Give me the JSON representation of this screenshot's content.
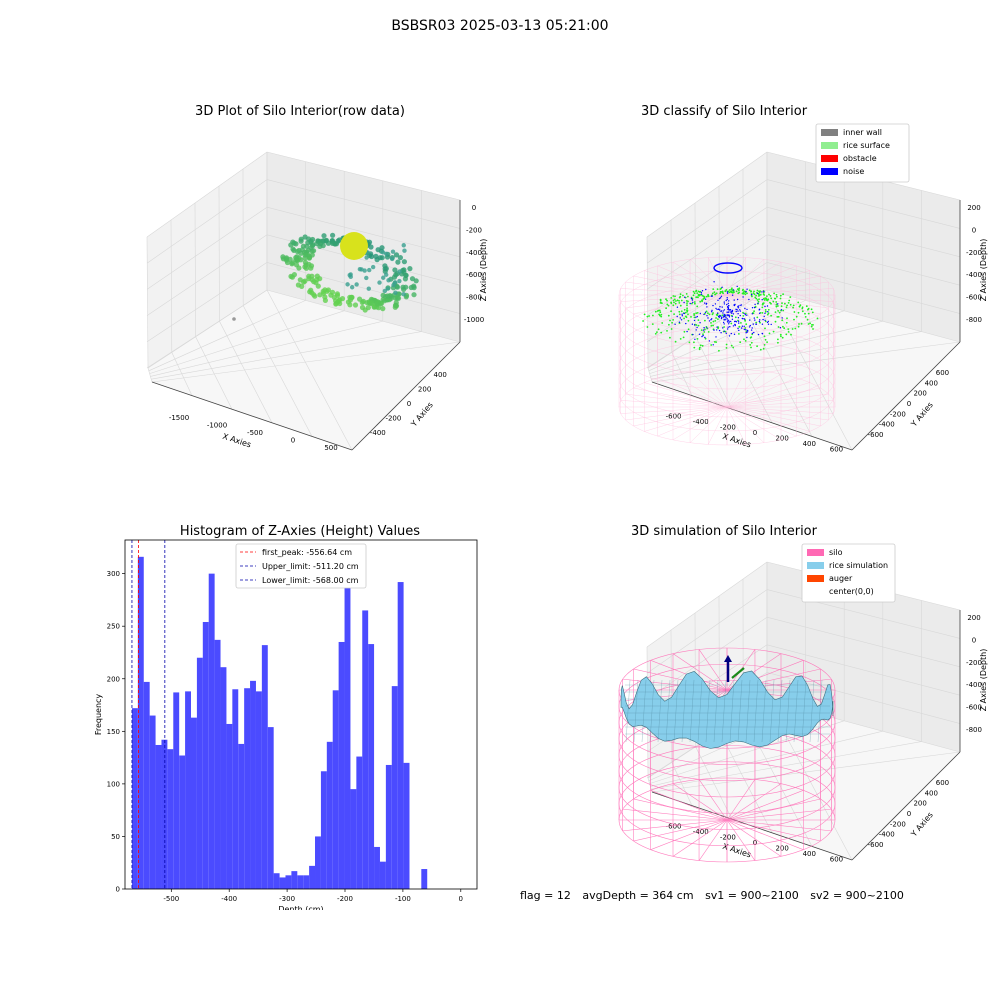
{
  "figure": {
    "suptitle": "BSBSR03 2025-03-13 05:21:00",
    "footer": {
      "flag": "flag = 12",
      "avg_depth": "avgDepth = 364 cm",
      "sv1": "sv1 = 900~2100",
      "sv2": "sv2 = 900~2100"
    }
  },
  "colors": {
    "inner_wall": "#808080",
    "rice_surface": "#90ee90",
    "obstacle": "#ff0000",
    "noise": "#0000ff",
    "silo": "#ff69b4",
    "rice_simulation": "#87ceeb",
    "auger": "#ff4500",
    "hist_bar": "#4b4bff",
    "first_peak_line": "#ff0000",
    "limit_line": "#0000aa"
  },
  "chart_data": [
    {
      "type": "scatter",
      "title": "3D Plot of Silo Interior(row data)",
      "xlabel": "X Axies",
      "ylabel": "Y Axies",
      "zlabel": "Z Axies (Depth)",
      "x_ticks": [
        "-1500",
        "-1000",
        "-500",
        "0",
        "500"
      ],
      "y_ticks": [
        "-400",
        "-200",
        "0",
        "200",
        "400"
      ],
      "z_ticks": [
        "0",
        "-200",
        "-400",
        "-600",
        "-800",
        "-1000"
      ]
    },
    {
      "type": "scatter",
      "title": "3D classify of Silo Interior",
      "xlabel": "X Axies",
      "ylabel": "Y Axies",
      "zlabel": "Z Axies (Depth)",
      "x_ticks": [
        "-600",
        "-400",
        "-200",
        "0",
        "200",
        "400",
        "600"
      ],
      "y_ticks": [
        "-600",
        "-400",
        "-200",
        "0",
        "200",
        "400",
        "600"
      ],
      "z_ticks": [
        "200",
        "0",
        "-200",
        "-400",
        "-600",
        "-800"
      ],
      "legend": [
        "inner wall",
        "rice surface",
        "obstacle",
        "noise"
      ],
      "legend_position": "top-right"
    },
    {
      "type": "bar",
      "title": "Histogram of Z-Axies (Height) Values",
      "xlabel": "Depth (cm)",
      "ylabel": "Frequency",
      "xlim": [
        -580,
        28
      ],
      "ylim": [
        0,
        332
      ],
      "x_ticks": [
        -500,
        -400,
        -300,
        -200,
        -100,
        0
      ],
      "y_ticks": [
        0,
        50,
        100,
        150,
        200,
        250,
        300
      ],
      "bin_start": -568,
      "bin_width": 10.2,
      "values": [
        172,
        316,
        197,
        165,
        137,
        142,
        133,
        187,
        127,
        188,
        163,
        220,
        254,
        300,
        237,
        211,
        157,
        190,
        138,
        191,
        198,
        188,
        232,
        154,
        15,
        11,
        13,
        17,
        13,
        13,
        22,
        50,
        112,
        140,
        189,
        235,
        292,
        95,
        126,
        265,
        233,
        40,
        26,
        118,
        193,
        292,
        120,
        0,
        0,
        19
      ],
      "vlines": [
        {
          "label": "first_peak: -556.64 cm",
          "x": -556.64,
          "style": "red"
        },
        {
          "label": "Upper_limit: -511.20 cm",
          "x": -511.2,
          "style": "blue"
        },
        {
          "label": "Lower_limit: -568.00 cm",
          "x": -568.0,
          "style": "blue"
        }
      ],
      "legend_position": "top-center"
    },
    {
      "type": "area",
      "title": "3D simulation of Silo Interior",
      "xlabel": "X Axies",
      "ylabel": "Y Axies",
      "zlabel": "Z Axies (Depth)",
      "x_ticks": [
        "-600",
        "-400",
        "-200",
        "0",
        "200",
        "400",
        "600"
      ],
      "y_ticks": [
        "-600",
        "-400",
        "-200",
        "0",
        "200",
        "400",
        "600"
      ],
      "z_ticks": [
        "200",
        "0",
        "-200",
        "-400",
        "-600",
        "-800"
      ],
      "legend": [
        "silo",
        "rice simulation",
        "auger",
        "center(0,0)"
      ],
      "legend_position": "top-right"
    }
  ]
}
